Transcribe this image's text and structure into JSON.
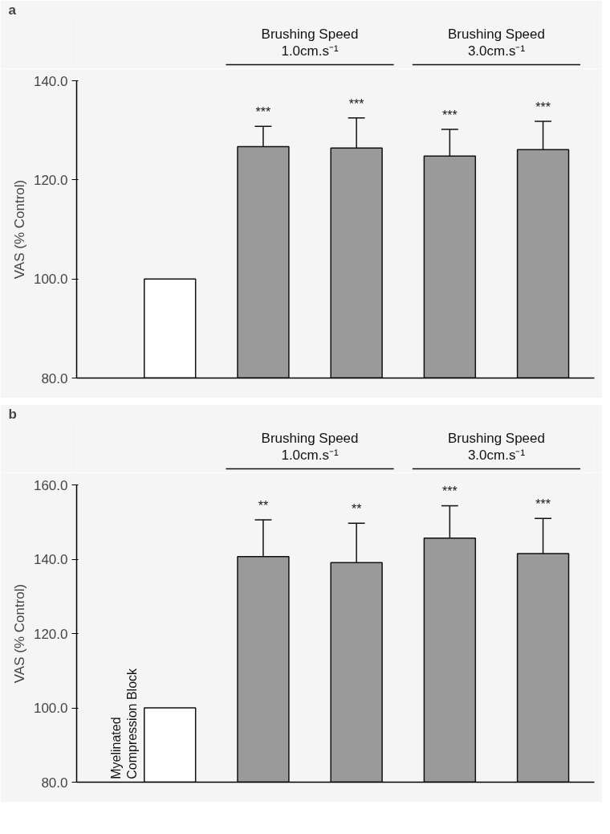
{
  "chart_data": [
    {
      "type": "bar",
      "title": "a",
      "ylabel": "VAS (% Control)",
      "categories": [
        null,
        null,
        null,
        null,
        null
      ],
      "values": [
        100,
        126.7,
        126.4,
        124.8,
        126.1
      ],
      "colors": [
        "#ffffff",
        "#9a9a9a",
        "#9a9a9a",
        "#9a9a9a",
        "#9a9a9a"
      ],
      "errors": [
        null,
        [
          126.7,
          130.8
        ],
        [
          126.4,
          132.5
        ],
        [
          124.8,
          130.2
        ],
        [
          126.1,
          131.8
        ]
      ],
      "ylim": [
        80,
        140
      ],
      "yticks": [
        {
          "value": 80,
          "label": "80.0"
        },
        {
          "value": 100,
          "label": "100.0"
        },
        {
          "value": 120,
          "label": "120.0"
        },
        {
          "value": 140,
          "label": "140.0"
        }
      ],
      "grid": false,
      "annotations": [
        "Brushing Speed\n1.0cm.s⁻¹",
        "Brushing Speed\n3.0cm.s⁻¹",
        "***",
        "***",
        "***",
        "***"
      ]
    },
    {
      "type": "bar",
      "title": "b",
      "ylabel": "VAS (% Control)",
      "categories": [
        "Myelinated\nCompression Block",
        null,
        null,
        null,
        null
      ],
      "values": [
        100,
        140.7,
        139.1,
        145.7,
        141.5
      ],
      "colors": [
        "#ffffff",
        "#9a9a9a",
        "#9a9a9a",
        "#9a9a9a",
        "#9a9a9a"
      ],
      "errors": [
        null,
        [
          140.7,
          150.6
        ],
        [
          139.1,
          149.7
        ],
        [
          145.7,
          154.4
        ],
        [
          141.5,
          151.0
        ]
      ],
      "ylim": [
        80,
        160
      ],
      "yticks": [
        {
          "value": 80,
          "label": "80.0"
        },
        {
          "value": 100,
          "label": "100.0"
        },
        {
          "value": 120,
          "label": "120.0"
        },
        {
          "value": 140,
          "label": "140.0"
        },
        {
          "value": 160,
          "label": "160.0"
        }
      ],
      "grid": false,
      "annotations": [
        "Brushing Speed\n1.0cm.s⁻¹",
        "Brushing Speed\n3.0cm.s⁻¹",
        "**",
        "**",
        "***",
        "***"
      ]
    }
  ]
}
